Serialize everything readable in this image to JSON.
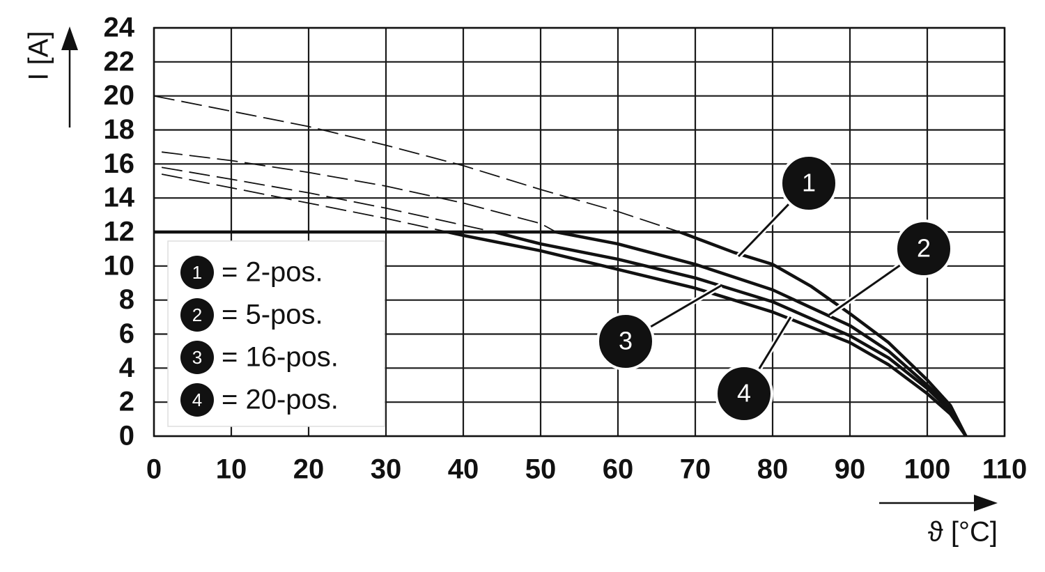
{
  "chart_data": {
    "type": "line",
    "x_label": "ϑ [°C]",
    "y_label": "I [A]",
    "xlim": [
      0,
      110
    ],
    "xticks": [
      0,
      10,
      20,
      30,
      40,
      50,
      60,
      70,
      80,
      90,
      100,
      110
    ],
    "ylim": [
      0,
      24
    ],
    "yticks": [
      0,
      2,
      4,
      6,
      8,
      10,
      12,
      14,
      16,
      18,
      20,
      22,
      24
    ],
    "grid": true,
    "current_limit": 12,
    "series": [
      {
        "name": "= 2-pos.",
        "marker": "1",
        "color": "#111111",
        "x": [
          0,
          10,
          20,
          30,
          40,
          50,
          60,
          68,
          75,
          80,
          85,
          90,
          95,
          100,
          103,
          105
        ],
        "values": [
          20,
          19.1,
          18.2,
          17.1,
          15.9,
          14.5,
          13.2,
          12,
          10.8,
          10.1,
          8.8,
          7.2,
          5.5,
          3.3,
          1.8,
          0
        ]
      },
      {
        "name": "= 5-pos.",
        "marker": "2",
        "color": "#111111",
        "x": [
          1,
          10,
          20,
          30,
          40,
          50,
          52,
          60,
          70,
          80,
          90,
          95,
          100,
          103,
          105
        ],
        "values": [
          16.7,
          16.2,
          15.5,
          14.7,
          13.7,
          12.5,
          12,
          11.3,
          10.1,
          8.6,
          6.5,
          5,
          3,
          1.7,
          0
        ]
      },
      {
        "name": "= 16-pos.",
        "marker": "3",
        "color": "#111111",
        "x": [
          1,
          10,
          20,
          30,
          40,
          44,
          50,
          60,
          70,
          80,
          90,
          95,
          100,
          103,
          105
        ],
        "values": [
          15.8,
          15.1,
          14.3,
          13.4,
          12.4,
          12,
          11.3,
          10.4,
          9.3,
          7.9,
          5.9,
          4.6,
          2.8,
          1.5,
          0
        ]
      },
      {
        "name": "= 20-pos.",
        "marker": "4",
        "color": "#111111",
        "x": [
          1,
          10,
          20,
          30,
          38,
          40,
          50,
          60,
          70,
          80,
          90,
          95,
          100,
          103,
          105
        ],
        "values": [
          15.4,
          14.6,
          13.7,
          12.8,
          12,
          11.8,
          10.9,
          9.8,
          8.7,
          7.3,
          5.5,
          4.2,
          2.5,
          1.3,
          0
        ]
      }
    ]
  }
}
